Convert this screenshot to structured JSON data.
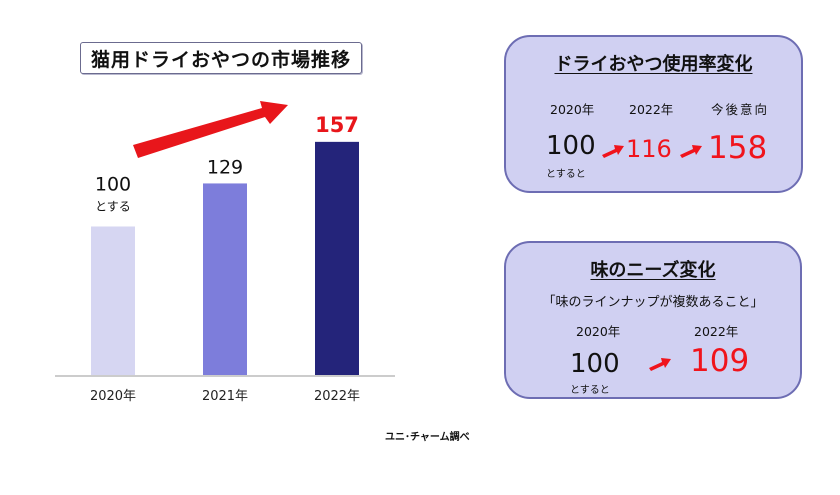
{
  "chart_title": "猫用ドライおやつの市場推移",
  "chart_data": {
    "type": "bar",
    "title": "猫用ドライおやつの市場推移",
    "categories": [
      "2020年",
      "2021年",
      "2022年"
    ],
    "values": [
      100,
      129,
      157
    ],
    "value_labels": [
      "100",
      "129",
      "157"
    ],
    "base_note": "とする",
    "colors": [
      "#d6d6f2",
      "#7d7ddb",
      "#24247a"
    ],
    "highlight_color": "#e8161b",
    "ylim": [
      0,
      200
    ],
    "trend_arrow": "up",
    "trend_arrow_color": "#e8161b"
  },
  "source_note": "ユニ･チャーム調べ",
  "usage_panel": {
    "title": "ドライおやつ使用率変化",
    "year1": "2020年",
    "year2": "2022年",
    "year3": "今後意向",
    "base_value": "100",
    "base_note": "とすると",
    "value2": "116",
    "value3": "158"
  },
  "needs_panel": {
    "title": "味のニーズ変化",
    "quote": "「味のラインナップが複数あること」",
    "year1": "2020年",
    "year2": "2022年",
    "base_value": "100",
    "base_note": "とすると",
    "value2": "109"
  },
  "colors": {
    "accent_red": "#f0141c",
    "panel_bg": "#d0d0f2",
    "panel_border": "#6d6db3"
  }
}
